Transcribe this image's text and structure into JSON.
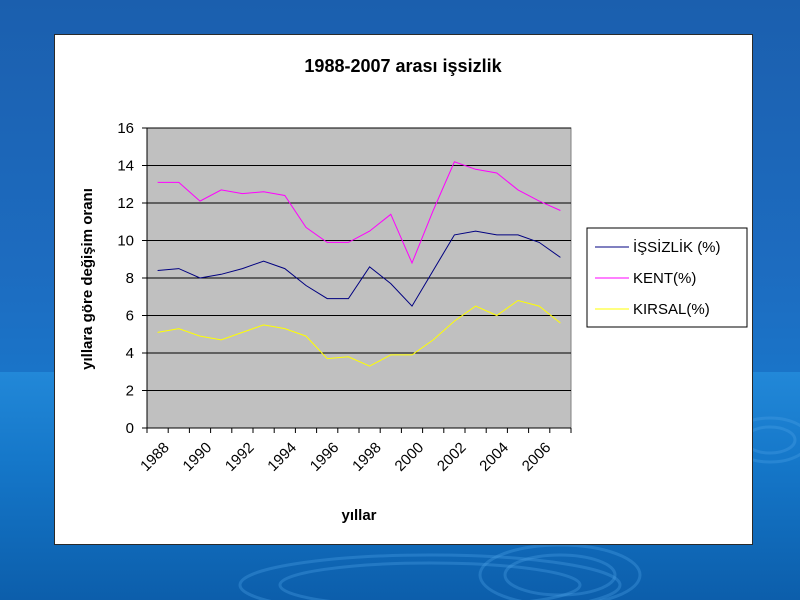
{
  "chart_data": {
    "type": "line",
    "title": "1988-2007 arası işsizlik",
    "xlabel": "yıllar",
    "ylabel": "yıllara göre değişim oranı",
    "x": [
      1988,
      1989,
      1990,
      1991,
      1992,
      1993,
      1994,
      1995,
      1996,
      1997,
      1998,
      1999,
      2000,
      2001,
      2002,
      2003,
      2004,
      2005,
      2006,
      2007
    ],
    "x_tick_labels": [
      "1988",
      "1990",
      "1992",
      "1994",
      "1996",
      "1998",
      "2000",
      "2002",
      "2004",
      "2006"
    ],
    "ylim": [
      0,
      16
    ],
    "y_ticks": [
      0,
      2,
      4,
      6,
      8,
      10,
      12,
      14,
      16
    ],
    "grid": true,
    "legend_position": "right",
    "series": [
      {
        "name": "İŞSİZLİK (%)",
        "color": "#000080",
        "values": [
          8.4,
          8.5,
          8.0,
          8.2,
          8.5,
          8.9,
          8.5,
          7.6,
          6.9,
          6.9,
          8.6,
          7.7,
          6.5,
          8.4,
          10.3,
          10.5,
          10.3,
          10.3,
          9.9,
          9.1
        ]
      },
      {
        "name": "KENT(%)",
        "color": "#ff00ff",
        "values": [
          13.1,
          13.1,
          12.1,
          12.7,
          12.5,
          12.6,
          12.4,
          10.7,
          9.9,
          9.9,
          10.5,
          11.4,
          8.8,
          11.6,
          14.2,
          13.8,
          13.6,
          12.7,
          12.1,
          11.6
        ]
      },
      {
        "name": "KIRSAL(%)",
        "color": "#ffff00",
        "values": [
          5.1,
          5.3,
          4.9,
          4.7,
          5.1,
          5.5,
          5.3,
          4.9,
          3.7,
          3.8,
          3.3,
          3.9,
          3.9,
          4.7,
          5.7,
          6.5,
          6.0,
          6.8,
          6.5,
          5.6
        ]
      }
    ]
  }
}
